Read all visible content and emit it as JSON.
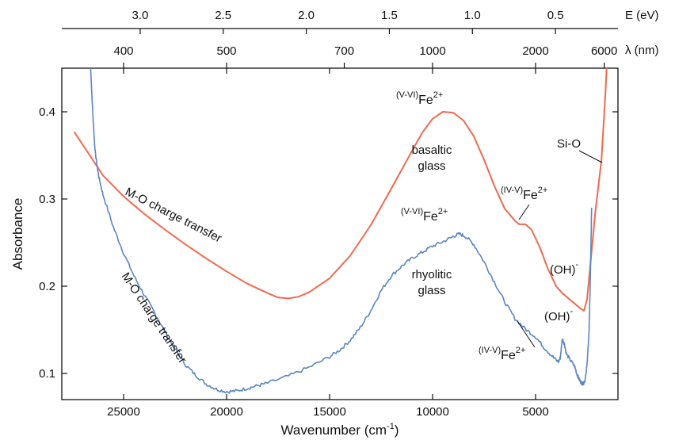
{
  "chart_data": {
    "type": "line",
    "xlabel": "Wavenumber (cm",
    "xlabel_sup": "-1",
    "xlabel_end": ")",
    "ylabel": "Absorbance",
    "xlim": [
      28000,
      1000
    ],
    "ylim": [
      0.07,
      0.45
    ],
    "x_ticks": [
      25000,
      20000,
      15000,
      10000,
      5000
    ],
    "y_ticks": [
      0.1,
      0.2,
      0.3,
      0.4
    ],
    "top_axis_energy": {
      "label": "E (eV)",
      "ticks": [
        {
          "label": "3.0",
          "value": 3.0
        },
        {
          "label": "2.5",
          "value": 2.5
        },
        {
          "label": "2.0",
          "value": 2.0
        },
        {
          "label": "1.5",
          "value": 1.5
        },
        {
          "label": "1.0",
          "value": 1.0
        },
        {
          "label": "0.5",
          "value": 0.5
        }
      ]
    },
    "top_axis_wavelength": {
      "label": "λ (nm)",
      "ticks": [
        {
          "label": "400",
          "value": 400
        },
        {
          "label": "500",
          "value": 500
        },
        {
          "label": "700",
          "value": 700
        },
        {
          "label": "1000",
          "value": 1000
        },
        {
          "label": "2000",
          "value": 2000
        },
        {
          "label": "6000",
          "value": 6000
        }
      ]
    },
    "series": [
      {
        "name": "basaltic glass",
        "color": "#ef6a4e",
        "points": [
          [
            27400,
            0.377
          ],
          [
            26500,
            0.345
          ],
          [
            26000,
            0.327
          ],
          [
            25000,
            0.303
          ],
          [
            24000,
            0.283
          ],
          [
            23000,
            0.265
          ],
          [
            22000,
            0.248
          ],
          [
            21000,
            0.232
          ],
          [
            20000,
            0.217
          ],
          [
            19000,
            0.203
          ],
          [
            18000,
            0.192
          ],
          [
            17500,
            0.187
          ],
          [
            17000,
            0.186
          ],
          [
            16500,
            0.188
          ],
          [
            16000,
            0.193
          ],
          [
            15000,
            0.209
          ],
          [
            14000,
            0.235
          ],
          [
            13000,
            0.27
          ],
          [
            12000,
            0.312
          ],
          [
            11000,
            0.355
          ],
          [
            10500,
            0.376
          ],
          [
            10000,
            0.392
          ],
          [
            9500,
            0.4
          ],
          [
            9000,
            0.399
          ],
          [
            8500,
            0.39
          ],
          [
            8000,
            0.372
          ],
          [
            7500,
            0.345
          ],
          [
            7000,
            0.315
          ],
          [
            6500,
            0.289
          ],
          [
            6000,
            0.275
          ],
          [
            5800,
            0.271
          ],
          [
            5500,
            0.271
          ],
          [
            5200,
            0.265
          ],
          [
            4800,
            0.245
          ],
          [
            4400,
            0.22
          ],
          [
            4000,
            0.2
          ],
          [
            3700,
            0.192
          ],
          [
            3500,
            0.188
          ],
          [
            3200,
            0.182
          ],
          [
            3000,
            0.178
          ],
          [
            2800,
            0.174
          ],
          [
            2650,
            0.172
          ],
          [
            2500,
            0.185
          ],
          [
            2300,
            0.235
          ],
          [
            2100,
            0.285
          ],
          [
            1950,
            0.315
          ],
          [
            1800,
            0.345
          ],
          [
            1700,
            0.385
          ],
          [
            1600,
            0.425
          ],
          [
            1550,
            0.45
          ]
        ]
      },
      {
        "name": "rhyolitic glass",
        "color": "#5a86c4",
        "points": [
          [
            26600,
            0.45
          ],
          [
            26500,
            0.4
          ],
          [
            26400,
            0.36
          ],
          [
            26300,
            0.34
          ],
          [
            26200,
            0.325
          ],
          [
            26000,
            0.305
          ],
          [
            25500,
            0.268
          ],
          [
            25000,
            0.238
          ],
          [
            24500,
            0.212
          ],
          [
            24000,
            0.19
          ],
          [
            23500,
            0.17
          ],
          [
            23000,
            0.148
          ],
          [
            22500,
            0.128
          ],
          [
            22000,
            0.11
          ],
          [
            21500,
            0.098
          ],
          [
            21000,
            0.088
          ],
          [
            20500,
            0.082
          ],
          [
            20000,
            0.079
          ],
          [
            19500,
            0.08
          ],
          [
            19000,
            0.083
          ],
          [
            18500,
            0.086
          ],
          [
            18000,
            0.089
          ],
          [
            17000,
            0.097
          ],
          [
            16000,
            0.107
          ],
          [
            15000,
            0.119
          ],
          [
            14500,
            0.127
          ],
          [
            14000,
            0.138
          ],
          [
            13500,
            0.153
          ],
          [
            13000,
            0.172
          ],
          [
            12500,
            0.195
          ],
          [
            12000,
            0.212
          ],
          [
            11500,
            0.223
          ],
          [
            11000,
            0.232
          ],
          [
            10500,
            0.239
          ],
          [
            10000,
            0.246
          ],
          [
            9500,
            0.251
          ],
          [
            9000,
            0.257
          ],
          [
            8700,
            0.26
          ],
          [
            8400,
            0.257
          ],
          [
            8000,
            0.248
          ],
          [
            7500,
            0.228
          ],
          [
            7000,
            0.205
          ],
          [
            6500,
            0.182
          ],
          [
            6000,
            0.163
          ],
          [
            5500,
            0.151
          ],
          [
            5000,
            0.142
          ],
          [
            4600,
            0.13
          ],
          [
            4200,
            0.12
          ],
          [
            3900,
            0.113
          ],
          [
            3800,
            0.118
          ],
          [
            3700,
            0.14
          ],
          [
            3600,
            0.134
          ],
          [
            3500,
            0.122
          ],
          [
            3300,
            0.115
          ],
          [
            3100,
            0.108
          ],
          [
            3000,
            0.1
          ],
          [
            2900,
            0.094
          ],
          [
            2800,
            0.09
          ],
          [
            2700,
            0.088
          ],
          [
            2600,
            0.092
          ],
          [
            2500,
            0.11
          ],
          [
            2400,
            0.15
          ],
          [
            2350,
            0.2
          ],
          [
            2300,
            0.26
          ],
          [
            2280,
            0.29
          ]
        ]
      }
    ],
    "annotations": {
      "basalt_fe_prefix": "(V-VI)",
      "basalt_fe_main": "Fe",
      "basalt_fe_sup": "2+",
      "basalt_name_1": "basaltic",
      "basalt_name_2": "glass",
      "basalt_fe2_prefix": "(IV-V)",
      "basalt_fe2_main": "Fe",
      "basalt_fe2_sup": "2+",
      "basalt_oh_main": "(OH)",
      "basalt_oh_sup": "-",
      "basalt_sio": "Si-O",
      "basalt_mo": "M-O charge transfer",
      "rhyo_fe_prefix": "(V-VI)",
      "rhyo_fe_main": "Fe",
      "rhyo_fe_sup": "2+",
      "rhyo_name_1": "rhyolitic",
      "rhyo_name_2": "glass",
      "rhyo_oh_main": "(OH)",
      "rhyo_oh_sup": "-",
      "rhyo_fe2_prefix": "(IV-V)",
      "rhyo_fe2_main": "Fe",
      "rhyo_fe2_sup": "2+",
      "rhyo_mo": "M-O charge transfer"
    }
  }
}
